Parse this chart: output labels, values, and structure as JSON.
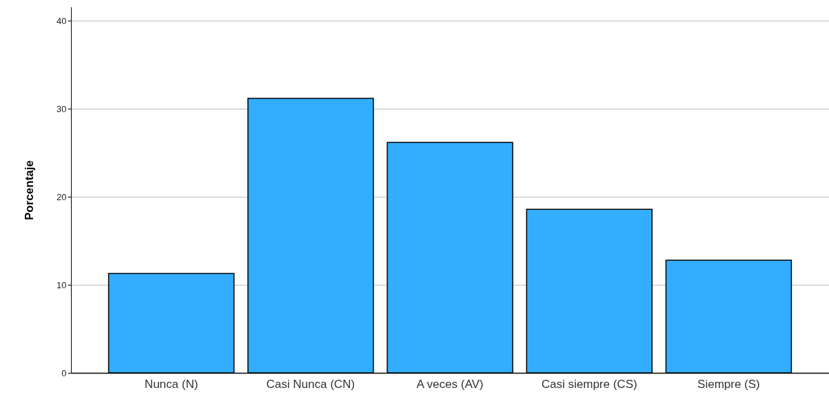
{
  "chart_data": {
    "type": "bar",
    "ylabel": "Porcentaje",
    "categories": [
      "Nunca (N)",
      "Casi Nunca (CN)",
      "A veces (AV)",
      "Casi siempre (CS)",
      "Siempre (S)"
    ],
    "values": [
      11.3,
      31.2,
      26.2,
      18.6,
      12.8
    ],
    "color": "#33adff",
    "ylim": [
      0,
      41.6
    ],
    "yticks": [
      0,
      10,
      20,
      30,
      40
    ],
    "grid": "y"
  }
}
